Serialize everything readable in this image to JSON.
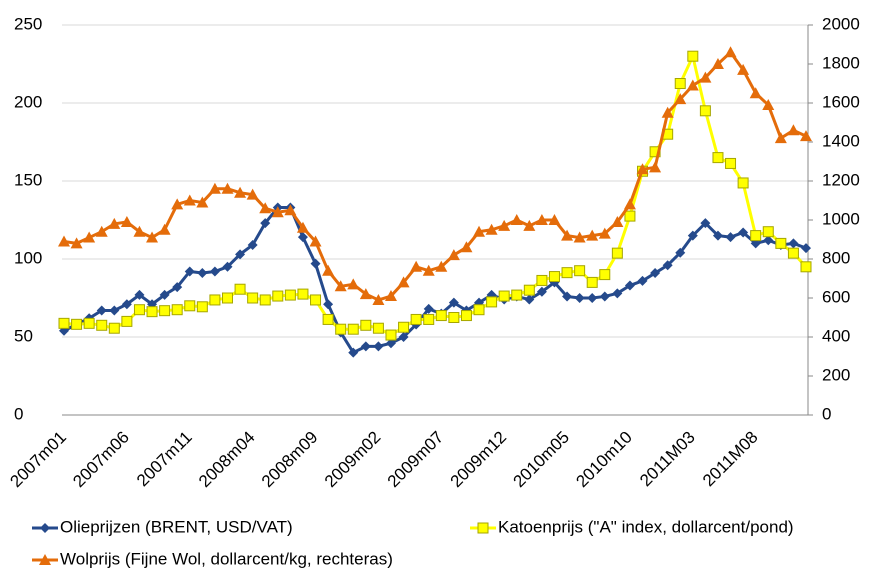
{
  "chart_data": {
    "type": "line",
    "categories": [
      "2007m01",
      null,
      null,
      null,
      null,
      "2007m06",
      null,
      null,
      null,
      null,
      "2007m11",
      null,
      null,
      null,
      null,
      "2008m04",
      null,
      null,
      null,
      null,
      "2008m09",
      null,
      null,
      null,
      null,
      "2009m02",
      null,
      null,
      null,
      null,
      "2009m07",
      null,
      null,
      null,
      null,
      "2009m12",
      null,
      null,
      null,
      null,
      "2010m05",
      null,
      null,
      null,
      null,
      "2010m10",
      null,
      null,
      null,
      null,
      "2011M03",
      null,
      null,
      null,
      null,
      "2011M08",
      null,
      null,
      null,
      null
    ],
    "ylim": [
      0,
      250
    ],
    "yticks": [
      0,
      50,
      100,
      150,
      200,
      250
    ],
    "y2lim": [
      0,
      2000
    ],
    "y2ticks": [
      0,
      200,
      400,
      600,
      800,
      1000,
      1200,
      1400,
      1600,
      1800,
      2000
    ],
    "grid": true,
    "legend": "bottom",
    "series": [
      {
        "name": "Olieprijzen (BRENT, USD/VAT)",
        "color": "#254a8c",
        "marker": "diamond",
        "values": [
          54,
          58,
          62,
          67,
          67,
          71,
          77,
          71,
          77,
          82,
          92,
          91,
          92,
          95,
          103,
          109,
          123,
          133,
          133,
          114,
          97,
          71,
          53,
          40,
          44,
          44,
          46,
          50,
          58,
          68,
          65,
          72,
          67,
          72,
          77,
          74,
          76,
          74,
          79,
          85,
          76,
          75,
          75,
          76,
          78,
          83,
          86,
          91,
          96,
          104,
          115,
          123,
          115,
          114,
          117,
          110,
          112,
          109,
          110,
          107
        ]
      },
      {
        "name": "Katoenprijs (\"A\" index, dollarcent/pond)",
        "color": "#ffff00",
        "marker": "square",
        "axis": "y2",
        "values": [
          470,
          465,
          470,
          460,
          445,
          480,
          540,
          530,
          535,
          540,
          560,
          555,
          590,
          600,
          645,
          600,
          590,
          610,
          615,
          620,
          590,
          490,
          440,
          440,
          460,
          445,
          410,
          450,
          490,
          490,
          510,
          500,
          510,
          540,
          580,
          610,
          615,
          640,
          690,
          710,
          730,
          740,
          680,
          720,
          830,
          1020,
          1250,
          1350,
          1440,
          1700,
          1840,
          1560,
          1320,
          1290,
          1190,
          920,
          940,
          880,
          830,
          760
        ]
      },
      {
        "name": "Wolprijs (Fijne Wol, dollarcent/kg, rechteras)",
        "color": "#e46c0a",
        "marker": "triangle",
        "axis": "y2",
        "values": [
          890,
          880,
          910,
          940,
          980,
          990,
          940,
          910,
          950,
          1080,
          1100,
          1090,
          1160,
          1160,
          1140,
          1130,
          1060,
          1040,
          1050,
          960,
          890,
          740,
          660,
          670,
          620,
          590,
          610,
          680,
          760,
          740,
          760,
          820,
          860,
          940,
          950,
          970,
          1000,
          970,
          1000,
          1000,
          920,
          910,
          920,
          930,
          990,
          1080,
          1260,
          1270,
          1550,
          1620,
          1690,
          1730,
          1800,
          1860,
          1770,
          1650,
          1590,
          1420,
          1460,
          1430
        ]
      }
    ]
  }
}
